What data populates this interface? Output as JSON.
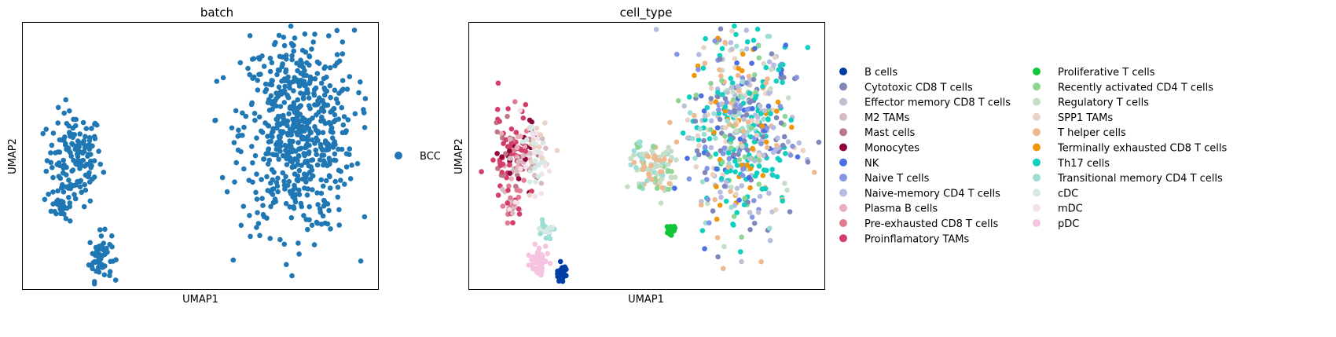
{
  "chart_data": [
    {
      "type": "scatter",
      "title": "batch",
      "xlabel": "UMAP1",
      "ylabel": "UMAP2",
      "xlim": [
        -10,
        12
      ],
      "ylim": [
        -8,
        10
      ],
      "grid": false,
      "ticks": false,
      "legend_position": "right",
      "legend": [
        {
          "label": "BCC",
          "color": "#1f77b4"
        }
      ],
      "series": [
        {
          "name": "BCC",
          "color": "#1f77b4",
          "regions": [
            {
              "center": [
                -6.8,
                0.8
              ],
              "spread": [
                1.7,
                3.2
              ],
              "count": 150
            },
            {
              "center": [
                -7.6,
                -2.4
              ],
              "spread": [
                0.6,
                0.8
              ],
              "count": 30
            },
            {
              "center": [
                -5.2,
                -5.8
              ],
              "spread": [
                0.7,
                1.6
              ],
              "count": 60
            },
            {
              "center": [
                7.0,
                2.6
              ],
              "spread": [
                3.5,
                6.8
              ],
              "count": 620
            }
          ]
        }
      ]
    },
    {
      "type": "scatter",
      "title": "cell_type",
      "xlabel": "UMAP1",
      "ylabel": "UMAP2",
      "xlim": [
        -10,
        12
      ],
      "ylim": [
        -8,
        10
      ],
      "grid": false,
      "ticks": false,
      "legend_position": "right, two columns",
      "legend": [
        {
          "label": "B cells",
          "color": "#023fa5"
        },
        {
          "label": "Cytotoxic CD8 T cells",
          "color": "#7d87b9"
        },
        {
          "label": "Effector memory CD8 T cells",
          "color": "#bec1d4"
        },
        {
          "label": "M2 TAMs",
          "color": "#d6bcc0"
        },
        {
          "label": "Mast cells",
          "color": "#bb7784"
        },
        {
          "label": "Monocytes",
          "color": "#8e063b"
        },
        {
          "label": "NK",
          "color": "#4a6fe3"
        },
        {
          "label": "Naive T cells",
          "color": "#8595e1"
        },
        {
          "label": "Naive-memory CD4 T cells",
          "color": "#b5bbe3"
        },
        {
          "label": "Plasma B cells",
          "color": "#e6afb9"
        },
        {
          "label": "Pre-exhausted CD8 T cells",
          "color": "#e07b91"
        },
        {
          "label": "Proinflamatory TAMs",
          "color": "#d33f6a"
        },
        {
          "label": "Proliferative T cells",
          "color": "#11c638"
        },
        {
          "label": "Recently activated CD4 T cells",
          "color": "#8dd593"
        },
        {
          "label": "Regulatory T cells",
          "color": "#c6dec7"
        },
        {
          "label": "SPP1 TAMs",
          "color": "#ead3c6"
        },
        {
          "label": "T helper cells",
          "color": "#f0b98d"
        },
        {
          "label": "Terminally exhausted CD8 T cells",
          "color": "#ef9708"
        },
        {
          "label": "Th17 cells",
          "color": "#0fcfc0"
        },
        {
          "label": "Transitional memory CD4 T cells",
          "color": "#9cded6"
        },
        {
          "label": "cDC",
          "color": "#d5eae7"
        },
        {
          "label": "mDC",
          "color": "#f3e1eb"
        },
        {
          "label": "pDC",
          "color": "#f6c4e1"
        }
      ],
      "regions": [
        {
          "center": [
            -7.2,
            1.0
          ],
          "spread": [
            1.3,
            2.8
          ],
          "count": 140,
          "palette": [
            "#d33f6a",
            "#d33f6a",
            "#d33f6a",
            "#e07b91",
            "#d6bcc0",
            "#bb7784",
            "#e6afb9",
            "#8e063b"
          ]
        },
        {
          "center": [
            -5.8,
            1.0
          ],
          "spread": [
            1.0,
            2.5
          ],
          "count": 60,
          "palette": [
            "#f3e1eb",
            "#d5eae7",
            "#ead3c6",
            "#d6bcc0"
          ]
        },
        {
          "center": [
            -7.3,
            -2.5
          ],
          "spread": [
            0.5,
            0.7
          ],
          "count": 25,
          "palette": [
            "#d33f6a",
            "#f3e1eb",
            "#e07b91",
            "#d6bcc0"
          ]
        },
        {
          "center": [
            -5.3,
            -4.0
          ],
          "spread": [
            0.6,
            0.5
          ],
          "count": 25,
          "palette": [
            "#d5eae7",
            "#9cded6"
          ]
        },
        {
          "center": [
            -5.6,
            -6.2
          ],
          "spread": [
            0.6,
            1.1
          ],
          "count": 50,
          "palette": [
            "#f6c4e1"
          ]
        },
        {
          "center": [
            -4.2,
            -6.8
          ],
          "spread": [
            0.25,
            0.55
          ],
          "count": 35,
          "palette": [
            "#023fa5"
          ]
        },
        {
          "center": [
            2.5,
            -4.0
          ],
          "spread": [
            0.22,
            0.28
          ],
          "count": 28,
          "palette": [
            "#11c638"
          ]
        },
        {
          "center": [
            1.5,
            0.2
          ],
          "spread": [
            1.4,
            1.8
          ],
          "count": 110,
          "palette": [
            "#c6dec7",
            "#c6dec7",
            "#f0b98d",
            "#f0b98d",
            "#8dd593",
            "#9cded6"
          ]
        },
        {
          "center": [
            7.0,
            2.6
          ],
          "spread": [
            3.2,
            6.6
          ],
          "count": 560,
          "palette": [
            "#0fcfc0",
            "#0fcfc0",
            "#0fcfc0",
            "#7d87b9",
            "#7d87b9",
            "#8595e1",
            "#f0b98d",
            "#b5bbe3",
            "#bec1d4",
            "#c6dec7",
            "#9cded6",
            "#ef9708",
            "#8dd593",
            "#4a6fe3",
            "#ead3c6"
          ]
        }
      ]
    }
  ]
}
